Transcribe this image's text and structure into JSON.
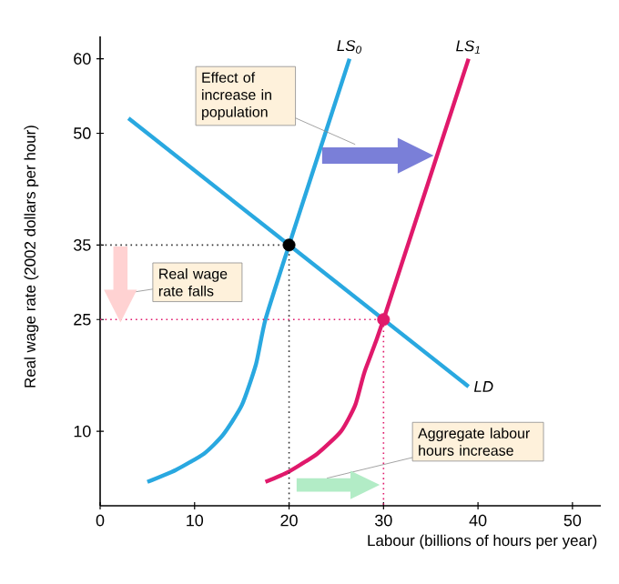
{
  "chart_data": {
    "type": "line",
    "xlabel": "Labour (billions of hours per year)",
    "ylabel": "Real wage rate (2002 dollars per hour)",
    "xlim": [
      0,
      53
    ],
    "ylim": [
      0,
      63
    ],
    "xticks": [
      0,
      10,
      20,
      30,
      40,
      50
    ],
    "yticks": [
      10,
      25,
      35,
      50,
      60
    ],
    "series": [
      {
        "name": "LD",
        "color": "#29a8e0",
        "x": [
          3,
          39
        ],
        "values": [
          52,
          16
        ]
      },
      {
        "name": "LS$_{0}$",
        "color": "#29a8e0",
        "x": [
          5,
          8,
          11,
          13,
          15,
          16.5,
          17.5,
          20,
          26.4
        ],
        "values": [
          3.2,
          4.8,
          7,
          9.5,
          13.5,
          19,
          25,
          35,
          60
        ]
      },
      {
        "name": "LS$_{1}$",
        "color": "#e0196b",
        "x": [
          17.5,
          20,
          23,
          25.5,
          27,
          28,
          30,
          39
        ],
        "values": [
          3.2,
          4.6,
          7,
          10,
          13.5,
          18,
          25,
          60
        ]
      },
      {
        "color": "#333333",
        "line_style": "dotted",
        "x": [
          0,
          20,
          20
        ],
        "values": [
          35,
          35,
          0
        ]
      },
      {
        "color": "#e0196b",
        "line_style": "dotted",
        "x": [
          0,
          30,
          30
        ],
        "values": [
          25,
          25,
          0
        ]
      },
      {
        "type": "scatter",
        "colors": [
          "#000000",
          "#e0196b"
        ],
        "x": [
          20,
          30
        ],
        "values": [
          35,
          25
        ]
      }
    ],
    "annotations": [
      "Effect of increase in population",
      "Real wage rate falls",
      "Aggregate labour hours increase"
    ]
  }
}
